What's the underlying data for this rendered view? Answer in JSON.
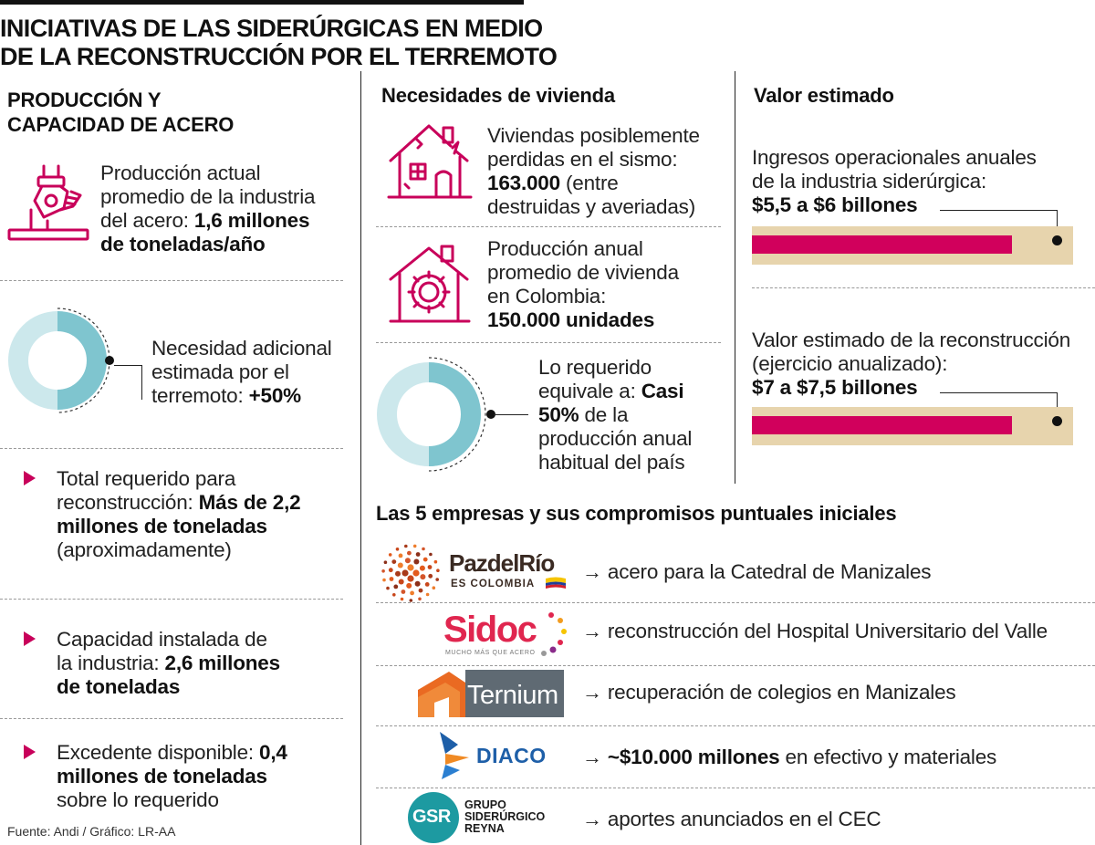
{
  "title": {
    "line1": "INICIATIVAS DE LAS SIDERÚRGICAS EN MEDIO",
    "line2": "DE LA RECONSTRUCCIÓN POR EL TERREMOTO"
  },
  "left": {
    "heading_line1": "PRODUCCIÓN Y",
    "heading_line2": "CAPACIDAD DE ACERO",
    "production": {
      "l1": "Producción actual",
      "l2": "promedio de la industria",
      "l3_pre": "del acero: ",
      "l3_bold": "1,6 millones",
      "l4_bold": "de toneladas/año"
    },
    "need": {
      "l1": "Necesidad adicional",
      "l2": "estimada por el",
      "l3_pre": "terremoto: ",
      "l3_bold": "+50%",
      "fraction": 0.5
    },
    "total": {
      "l1": "Total requerido para",
      "l2_pre": "reconstrucción: ",
      "l2_bold": "Más de 2,2",
      "l3_bold": "millones de toneladas",
      "l4": "(aproximadamente)"
    },
    "capacity": {
      "l1": "Capacidad instalada de",
      "l2_pre": "la industria: ",
      "l2_bold": "2,6 millones",
      "l3_bold": "de toneladas"
    },
    "surplus": {
      "l1_pre": "Excedente disponible: ",
      "l1_bold": "0,4",
      "l2_bold": "millones de toneladas",
      "l3": "sobre lo requerido"
    },
    "source": "Fuente: Andi / Gráfico: LR-AA"
  },
  "middle": {
    "heading": "Necesidades de vivienda",
    "lost": {
      "l1": "Viviendas posiblemente",
      "l2": "perdidas en el sismo:",
      "l3_bold": "163.000",
      "l3_post": " (entre",
      "l4": "destruidas y averiadas)"
    },
    "annual": {
      "l1": "Producción anual",
      "l2": "promedio de vivienda",
      "l3": "en Colombia:",
      "l4_bold": "150.000 unidades"
    },
    "required": {
      "l1": "Lo requerido",
      "l2_pre": "equivale a: ",
      "l2_bold": "Casi",
      "l3_bold": "50%",
      "l3_post": " de la",
      "l4": "producción anual",
      "l5": "habitual del país",
      "fraction": 0.5
    }
  },
  "right": {
    "heading": "Valor estimado",
    "income": {
      "l1": "Ingresos operacionales anuales",
      "l2": "de la industria siderúrgica:",
      "l3_bold": "$5,5 a $6 billones",
      "fill_fraction": 0.81
    },
    "reconstruction": {
      "l1": "Valor estimado de la reconstrucción",
      "l2": "(ejercicio anualizado):",
      "l3_bold": "$7 a $7,5 billones",
      "fill_fraction": 0.81
    }
  },
  "companies": {
    "heading": "Las 5 empresas y sus compromisos puntuales iniciales",
    "items": [
      {
        "logo": "PazdelRío",
        "logo_sub": "ES COLOMBIA",
        "text_pre": "acero para la Catedral de Manizales",
        "text_bold": ""
      },
      {
        "logo": "Sidoc",
        "logo_sub": "MUCHO MÁS QUE ACERO",
        "text_pre": "reconstrucción del Hospital Universitario del Valle",
        "text_bold": ""
      },
      {
        "logo": "Ternium",
        "logo_sub": "",
        "text_pre": "recuperación de colegios en Manizales",
        "text_bold": ""
      },
      {
        "logo": "DIACO",
        "logo_sub": "",
        "text_pre": " en efectivo y materiales",
        "text_bold": "~$10.000 millones"
      },
      {
        "logo": "GSR",
        "logo_sub": "GRUPO SIDERÚRGICO REYNA",
        "text_pre": "aportes anunciados en el CEC",
        "text_bold": ""
      }
    ],
    "arrow": "→"
  },
  "colors": {
    "accent": "#c8005a",
    "donut_light": "#cce8ec",
    "donut_dark": "#7fc5cf",
    "bar_bg": "#e7d4ad",
    "bar_fill": "#d1005c"
  },
  "icons": [
    "crane-bucket-icon",
    "damaged-house-icon",
    "house-gear-icon",
    "triangle-bullet-icon"
  ]
}
